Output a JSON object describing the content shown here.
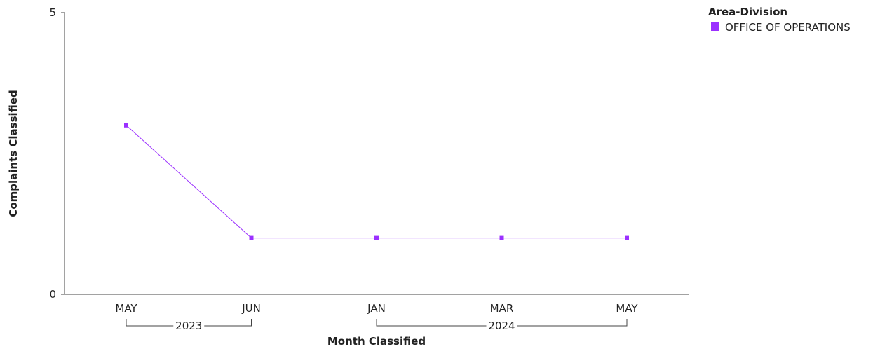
{
  "chart_data": {
    "type": "line",
    "xlabel": "Month Classified",
    "ylabel": "Complaints Classified",
    "ylim": [
      0,
      5
    ],
    "y_ticks": [
      "0",
      "5"
    ],
    "grid": false,
    "legend_placement": "top-right",
    "legend_title": "Area-Division",
    "categories": [
      "MAY",
      "JUN",
      "JAN",
      "MAR",
      "MAY"
    ],
    "year_groups": [
      {
        "label": "2023",
        "from": 0,
        "to": 1
      },
      {
        "label": "2024",
        "from": 2,
        "to": 4
      }
    ],
    "series": [
      {
        "name": "OFFICE OF OPERATIONS",
        "color": "#9b30ff",
        "values": [
          3,
          1,
          1,
          1,
          1
        ]
      }
    ]
  }
}
